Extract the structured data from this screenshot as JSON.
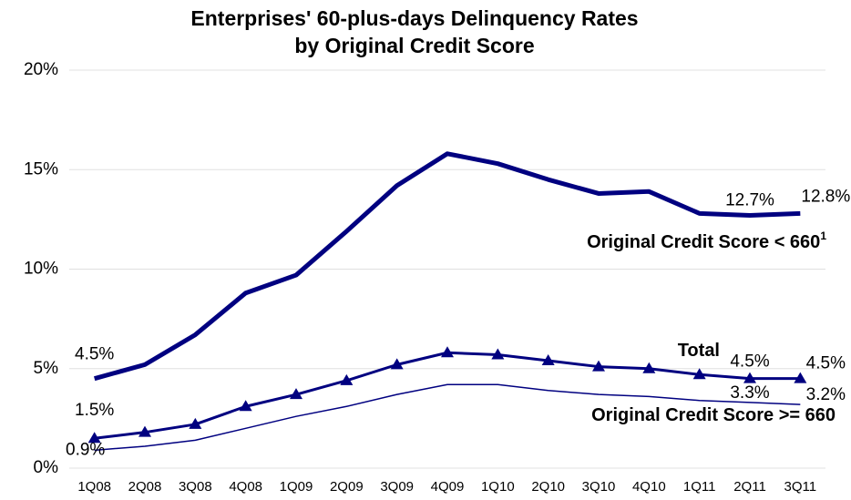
{
  "chart_data": {
    "type": "line",
    "title": [
      "Enterprises' 60-plus-days Delinquency Rates",
      "by Original Credit Score"
    ],
    "categories": [
      "1Q08",
      "2Q08",
      "3Q08",
      "4Q08",
      "1Q09",
      "2Q09",
      "3Q09",
      "4Q09",
      "1Q10",
      "2Q10",
      "3Q10",
      "4Q10",
      "1Q11",
      "2Q11",
      "3Q11"
    ],
    "ylim": [
      0,
      20
    ],
    "yticks": [
      {
        "value": 0,
        "label": "0%"
      },
      {
        "value": 5,
        "label": "5%"
      },
      {
        "value": 10,
        "label": "10%"
      },
      {
        "value": 15,
        "label": "15%"
      },
      {
        "value": 20,
        "label": "20%"
      }
    ],
    "grid": true,
    "series": [
      {
        "name": "Original Credit Score < 660",
        "name_note": "1",
        "color": "#000080",
        "values": [
          4.5,
          5.2,
          6.7,
          8.8,
          9.7,
          11.9,
          14.2,
          15.8,
          15.3,
          14.5,
          13.8,
          13.9,
          12.8,
          12.7,
          12.8
        ],
        "value_labels": [
          "4.5%",
          null,
          null,
          null,
          null,
          null,
          null,
          null,
          null,
          null,
          null,
          null,
          null,
          "12.7%",
          "12.8%"
        ]
      },
      {
        "name": "Total",
        "color": "#000080",
        "marker": "triangle",
        "values": [
          1.5,
          1.8,
          2.2,
          3.1,
          3.7,
          4.4,
          5.2,
          5.8,
          5.7,
          5.4,
          5.1,
          5.0,
          4.7,
          4.5,
          4.5
        ],
        "value_labels": [
          "1.5%",
          null,
          null,
          null,
          null,
          null,
          null,
          null,
          null,
          null,
          null,
          null,
          null,
          "4.5%",
          "4.5%"
        ]
      },
      {
        "name": "Original Credit Score >= 660",
        "color": "#000080",
        "values": [
          0.9,
          1.1,
          1.4,
          2.0,
          2.6,
          3.1,
          3.7,
          4.2,
          4.2,
          3.9,
          3.7,
          3.6,
          3.4,
          3.3,
          3.2
        ],
        "value_labels": [
          "0.9%",
          null,
          null,
          null,
          null,
          null,
          null,
          null,
          null,
          null,
          null,
          null,
          null,
          "3.3%",
          "3.2%"
        ]
      }
    ]
  }
}
